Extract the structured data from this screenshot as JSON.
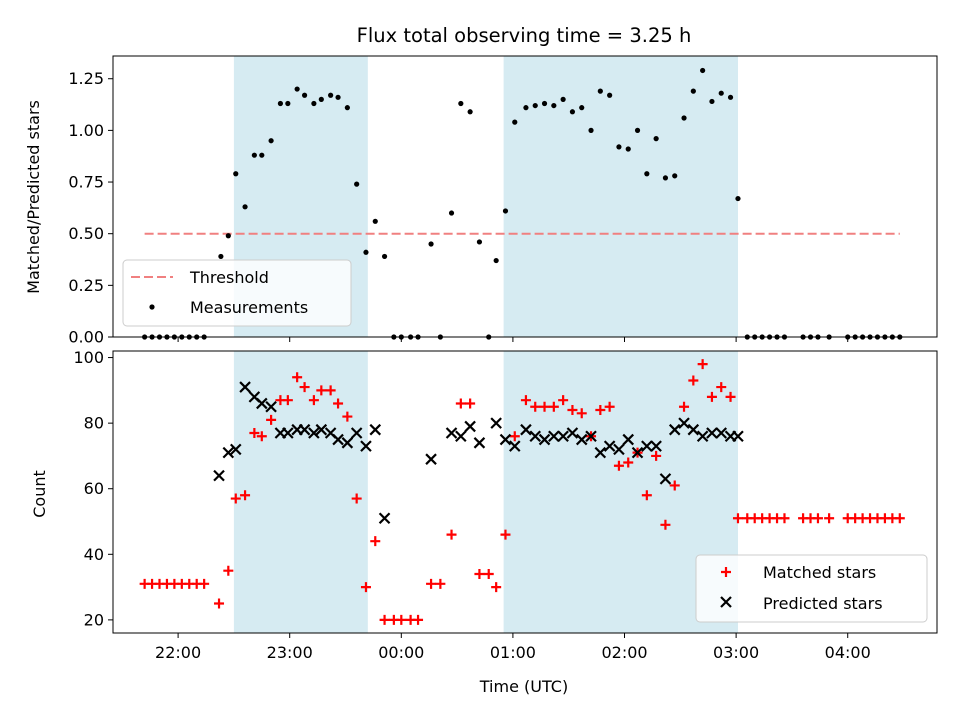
{
  "chart_data": [
    {
      "type": "scatter",
      "title": "Flux total observing time = 3.25 h",
      "xlabel": "",
      "ylabel": "Matched/Predicted stars",
      "ylim": [
        0,
        1.36
      ],
      "yticks": [
        "0.00",
        "0.25",
        "0.50",
        "0.75",
        "1.00",
        "1.25"
      ],
      "bands": [
        {
          "start": "22:30",
          "end": "23:42",
          "color": "#add8e6"
        },
        {
          "start": "00:55",
          "end": "03:01",
          "color": "#add8e6"
        }
      ],
      "threshold": {
        "name": "Threshold",
        "value": 0.5,
        "x_start": "21:42",
        "x_end": "04:28",
        "color": "#f08080"
      },
      "series": [
        {
          "name": "Measurements",
          "color": "#000000",
          "points": [
            [
              "21:42",
              0
            ],
            [
              "21:46",
              0
            ],
            [
              "21:50",
              0
            ],
            [
              "21:54",
              0
            ],
            [
              "21:58",
              0
            ],
            [
              "22:02",
              0
            ],
            [
              "22:06",
              0
            ],
            [
              "22:10",
              0
            ],
            [
              "22:14",
              0
            ],
            [
              "22:23",
              0.39
            ],
            [
              "22:27",
              0.49
            ],
            [
              "22:31",
              0.79
            ],
            [
              "22:36",
              0.63
            ],
            [
              "22:41",
              0.88
            ],
            [
              "22:45",
              0.88
            ],
            [
              "22:50",
              0.95
            ],
            [
              "22:55",
              1.13
            ],
            [
              "22:59",
              1.13
            ],
            [
              "23:04",
              1.2
            ],
            [
              "23:08",
              1.17
            ],
            [
              "23:13",
              1.13
            ],
            [
              "23:17",
              1.15
            ],
            [
              "23:22",
              1.17
            ],
            [
              "23:26",
              1.16
            ],
            [
              "23:31",
              1.11
            ],
            [
              "23:36",
              0.74
            ],
            [
              "23:41",
              0.41
            ],
            [
              "23:46",
              0.56
            ],
            [
              "23:51",
              0.39
            ],
            [
              "23:56",
              0
            ],
            [
              "00:00",
              0
            ],
            [
              "00:05",
              0
            ],
            [
              "00:09",
              0
            ],
            [
              "00:16",
              0.45
            ],
            [
              "00:21",
              0
            ],
            [
              "00:27",
              0.6
            ],
            [
              "00:32",
              1.13
            ],
            [
              "00:37",
              1.09
            ],
            [
              "00:42",
              0.46
            ],
            [
              "00:47",
              0
            ],
            [
              "00:51",
              0.37
            ],
            [
              "00:56",
              0.61
            ],
            [
              "01:01",
              1.04
            ],
            [
              "01:07",
              1.11
            ],
            [
              "01:12",
              1.12
            ],
            [
              "01:17",
              1.13
            ],
            [
              "01:22",
              1.12
            ],
            [
              "01:27",
              1.15
            ],
            [
              "01:32",
              1.09
            ],
            [
              "01:37",
              1.11
            ],
            [
              "01:42",
              1.0
            ],
            [
              "01:47",
              1.19
            ],
            [
              "01:52",
              1.17
            ],
            [
              "01:57",
              0.92
            ],
            [
              "02:02",
              0.91
            ],
            [
              "02:07",
              1.0
            ],
            [
              "02:12",
              0.79
            ],
            [
              "02:17",
              0.96
            ],
            [
              "02:22",
              0.77
            ],
            [
              "02:27",
              0.78
            ],
            [
              "02:32",
              1.06
            ],
            [
              "02:37",
              1.19
            ],
            [
              "02:42",
              1.29
            ],
            [
              "02:47",
              1.14
            ],
            [
              "02:52",
              1.18
            ],
            [
              "02:57",
              1.16
            ],
            [
              "03:01",
              0.67
            ],
            [
              "03:06",
              0
            ],
            [
              "03:10",
              0
            ],
            [
              "03:14",
              0
            ],
            [
              "03:18",
              0
            ],
            [
              "03:22",
              0
            ],
            [
              "03:26",
              0
            ],
            [
              "03:36",
              0
            ],
            [
              "03:40",
              0
            ],
            [
              "03:44",
              0
            ],
            [
              "03:50",
              0
            ],
            [
              "04:00",
              0
            ],
            [
              "04:04",
              0
            ],
            [
              "04:08",
              0
            ],
            [
              "04:12",
              0
            ],
            [
              "04:16",
              0
            ],
            [
              "04:20",
              0
            ],
            [
              "04:24",
              0
            ],
            [
              "04:28",
              0
            ]
          ]
        }
      ],
      "legend": {
        "placement": "lower-left"
      }
    },
    {
      "type": "scatter",
      "title": "",
      "xlabel": "Time (UTC)",
      "ylabel": "Count",
      "ylim": [
        16,
        102
      ],
      "yticks": [
        "20",
        "40",
        "60",
        "80",
        "100"
      ],
      "xticks": [
        "22:00",
        "23:00",
        "00:00",
        "01:00",
        "02:00",
        "03:00",
        "04:00"
      ],
      "xlim": [
        "21:25",
        "04:48"
      ],
      "bands": [
        {
          "start": "22:30",
          "end": "23:42",
          "color": "#add8e6"
        },
        {
          "start": "00:55",
          "end": "03:01",
          "color": "#add8e6"
        }
      ],
      "series": [
        {
          "name": "Matched stars",
          "color": "#ff0000",
          "marker": "plus",
          "points": [
            [
              "21:42",
              31
            ],
            [
              "21:46",
              31
            ],
            [
              "21:50",
              31
            ],
            [
              "21:54",
              31
            ],
            [
              "21:58",
              31
            ],
            [
              "22:02",
              31
            ],
            [
              "22:06",
              31
            ],
            [
              "22:10",
              31
            ],
            [
              "22:14",
              31
            ],
            [
              "22:22",
              25
            ],
            [
              "22:27",
              35
            ],
            [
              "22:31",
              57
            ],
            [
              "22:36",
              58
            ],
            [
              "22:41",
              77
            ],
            [
              "22:45",
              76
            ],
            [
              "22:50",
              81
            ],
            [
              "22:55",
              87
            ],
            [
              "22:59",
              87
            ],
            [
              "23:04",
              94
            ],
            [
              "23:08",
              91
            ],
            [
              "23:13",
              87
            ],
            [
              "23:17",
              90
            ],
            [
              "23:22",
              90
            ],
            [
              "23:26",
              86
            ],
            [
              "23:31",
              82
            ],
            [
              "23:36",
              57
            ],
            [
              "23:41",
              30
            ],
            [
              "23:46",
              44
            ],
            [
              "23:51",
              20
            ],
            [
              "23:56",
              20
            ],
            [
              "00:00",
              20
            ],
            [
              "00:05",
              20
            ],
            [
              "00:09",
              20
            ],
            [
              "00:16",
              31
            ],
            [
              "00:21",
              31
            ],
            [
              "00:27",
              46
            ],
            [
              "00:32",
              86
            ],
            [
              "00:37",
              86
            ],
            [
              "00:42",
              34
            ],
            [
              "00:47",
              34
            ],
            [
              "00:51",
              30
            ],
            [
              "00:56",
              46
            ],
            [
              "01:01",
              76
            ],
            [
              "01:07",
              87
            ],
            [
              "01:12",
              85
            ],
            [
              "01:17",
              85
            ],
            [
              "01:22",
              85
            ],
            [
              "01:27",
              87
            ],
            [
              "01:32",
              84
            ],
            [
              "01:37",
              83
            ],
            [
              "01:42",
              76
            ],
            [
              "01:47",
              84
            ],
            [
              "01:52",
              85
            ],
            [
              "01:57",
              67
            ],
            [
              "02:02",
              68
            ],
            [
              "02:07",
              71
            ],
            [
              "02:12",
              58
            ],
            [
              "02:17",
              70
            ],
            [
              "02:22",
              49
            ],
            [
              "02:27",
              61
            ],
            [
              "02:32",
              85
            ],
            [
              "02:37",
              93
            ],
            [
              "02:42",
              98
            ],
            [
              "02:47",
              88
            ],
            [
              "02:52",
              91
            ],
            [
              "02:57",
              88
            ],
            [
              "03:01",
              51
            ],
            [
              "03:06",
              51
            ],
            [
              "03:10",
              51
            ],
            [
              "03:14",
              51
            ],
            [
              "03:18",
              51
            ],
            [
              "03:22",
              51
            ],
            [
              "03:26",
              51
            ],
            [
              "03:36",
              51
            ],
            [
              "03:40",
              51
            ],
            [
              "03:44",
              51
            ],
            [
              "03:50",
              51
            ],
            [
              "04:00",
              51
            ],
            [
              "04:04",
              51
            ],
            [
              "04:08",
              51
            ],
            [
              "04:12",
              51
            ],
            [
              "04:16",
              51
            ],
            [
              "04:20",
              51
            ],
            [
              "04:24",
              51
            ],
            [
              "04:28",
              51
            ]
          ]
        },
        {
          "name": "Predicted stars",
          "color": "#000000",
          "marker": "x",
          "points": [
            [
              "22:22",
              64
            ],
            [
              "22:27",
              71
            ],
            [
              "22:31",
              72
            ],
            [
              "22:36",
              91
            ],
            [
              "22:41",
              88
            ],
            [
              "22:45",
              86
            ],
            [
              "22:50",
              85
            ],
            [
              "22:55",
              77
            ],
            [
              "22:59",
              77
            ],
            [
              "23:04",
              78
            ],
            [
              "23:08",
              78
            ],
            [
              "23:13",
              77
            ],
            [
              "23:17",
              78
            ],
            [
              "23:22",
              77
            ],
            [
              "23:26",
              75
            ],
            [
              "23:31",
              74
            ],
            [
              "23:36",
              77
            ],
            [
              "23:41",
              73
            ],
            [
              "23:46",
              78
            ],
            [
              "23:51",
              51
            ],
            [
              "00:16",
              69
            ],
            [
              "00:27",
              77
            ],
            [
              "00:32",
              76
            ],
            [
              "00:37",
              79
            ],
            [
              "00:42",
              74
            ],
            [
              "00:51",
              80
            ],
            [
              "00:56",
              75
            ],
            [
              "01:01",
              73
            ],
            [
              "01:07",
              78
            ],
            [
              "01:12",
              76
            ],
            [
              "01:17",
              75
            ],
            [
              "01:22",
              76
            ],
            [
              "01:27",
              76
            ],
            [
              "01:32",
              77
            ],
            [
              "01:37",
              75
            ],
            [
              "01:42",
              76
            ],
            [
              "01:47",
              71
            ],
            [
              "01:52",
              73
            ],
            [
              "01:57",
              72
            ],
            [
              "02:02",
              75
            ],
            [
              "02:07",
              71
            ],
            [
              "02:12",
              73
            ],
            [
              "02:17",
              73
            ],
            [
              "02:22",
              63
            ],
            [
              "02:27",
              78
            ],
            [
              "02:32",
              80
            ],
            [
              "02:37",
              78
            ],
            [
              "02:42",
              76
            ],
            [
              "02:47",
              77
            ],
            [
              "02:52",
              77
            ],
            [
              "02:57",
              76
            ],
            [
              "03:01",
              76
            ]
          ]
        }
      ],
      "legend": {
        "placement": "lower-right"
      }
    }
  ]
}
